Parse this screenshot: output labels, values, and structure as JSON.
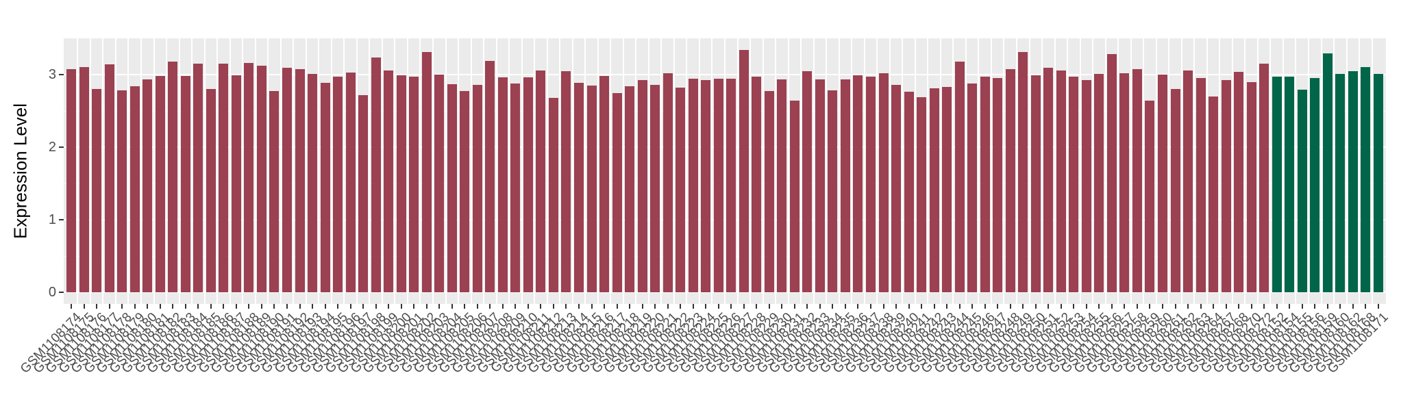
{
  "chart_data": {
    "type": "bar",
    "title": "",
    "xlabel": "",
    "ylabel": "Expression Level",
    "ylim": [
      0,
      3.5
    ],
    "yticks": [
      0,
      1,
      2,
      3
    ],
    "yticks_minor": [
      0.5,
      1.5,
      2.5
    ],
    "grid": true,
    "legend_position": "none",
    "bar_groups": [
      {
        "name": "red-group",
        "color": "#9B4151",
        "categories": [
          "GSM1108174",
          "GSM1108175",
          "GSM1108176",
          "GSM1108177",
          "GSM1108178",
          "GSM1108179",
          "GSM1108180",
          "GSM1108181",
          "GSM1108182",
          "GSM1108183",
          "GSM1108184",
          "GSM1108185",
          "GSM1108186",
          "GSM1108187",
          "GSM1108188",
          "GSM1108189",
          "GSM1108190",
          "GSM1108191",
          "GSM1108192",
          "GSM1108193",
          "GSM1108194",
          "GSM1108195",
          "GSM1108196",
          "GSM1108197",
          "GSM1108198",
          "GSM1108199",
          "GSM1108200",
          "GSM1108201",
          "GSM1108202",
          "GSM1108203",
          "GSM1108204",
          "GSM1108205",
          "GSM1108206",
          "GSM1108207",
          "GSM1108208",
          "GSM1108209",
          "GSM1108210",
          "GSM1108211",
          "GSM1108212",
          "GSM1108213",
          "GSM1108214",
          "GSM1108215",
          "GSM1108216",
          "GSM1108217",
          "GSM1108218",
          "GSM1108219",
          "GSM1108220",
          "GSM1108221",
          "GSM1108222",
          "GSM1108223",
          "GSM1108224",
          "GSM1108225",
          "GSM1108226",
          "GSM1108227",
          "GSM1108228",
          "GSM1108229",
          "GSM1108230",
          "GSM1108231",
          "GSM1108232",
          "GSM1108233",
          "GSM1108234",
          "GSM1108235",
          "GSM1108236",
          "GSM1108237",
          "GSM1108238",
          "GSM1108239",
          "GSM1108240",
          "GSM1108241",
          "GSM1108242",
          "GSM1108243",
          "GSM1108244",
          "GSM1108245",
          "GSM1108246",
          "GSM1108247",
          "GSM1108248",
          "GSM1108249",
          "GSM1108250",
          "GSM1108251",
          "GSM1108252",
          "GSM1108253",
          "GSM1108254",
          "GSM1108255",
          "GSM1108256",
          "GSM1108257",
          "GSM1108258",
          "GSM1108259",
          "GSM1108260",
          "GSM1108261",
          "GSM1108262",
          "GSM1108263",
          "GSM1108264",
          "GSM1108267",
          "GSM1108268",
          "GSM1108270",
          "GSM1108272"
        ],
        "values": [
          3.08,
          3.1,
          2.8,
          3.14,
          2.78,
          2.84,
          2.93,
          2.98,
          3.18,
          2.98,
          3.15,
          2.8,
          3.15,
          2.99,
          3.16,
          3.12,
          2.77,
          3.09,
          3.08,
          3.01,
          2.89,
          2.97,
          3.03,
          2.72,
          3.24,
          3.06,
          2.99,
          2.97,
          3.31,
          3.0,
          2.87,
          2.77,
          2.86,
          3.19,
          2.96,
          2.88,
          2.96,
          3.06,
          2.68,
          3.05,
          2.89,
          2.85,
          2.98,
          2.75,
          2.84,
          2.92,
          2.86,
          3.02,
          2.82,
          2.94,
          2.92,
          2.94,
          2.94,
          3.34,
          2.97,
          2.77,
          2.93,
          2.64,
          3.05,
          2.93,
          2.78,
          2.93,
          2.99,
          2.97,
          3.02,
          2.86,
          2.76,
          2.69,
          2.81,
          2.83,
          3.18,
          2.88,
          2.97,
          2.95,
          3.08,
          3.31,
          2.99,
          3.09,
          3.06,
          2.97,
          2.92,
          3.01,
          3.28,
          3.02,
          3.08,
          2.64,
          3.0,
          2.8,
          3.06,
          2.95,
          2.7,
          2.92,
          3.04,
          2.9,
          3.15
        ]
      },
      {
        "name": "green-group",
        "color": "#016649",
        "categories": [
          "GSM1108152",
          "GSM1108154",
          "GSM1108155",
          "GSM1108156",
          "GSM1108159",
          "GSM1108160",
          "GSM1108162",
          "GSM1108168",
          "GSM1108171"
        ],
        "values": [
          2.97,
          2.97,
          2.79,
          2.95,
          3.29,
          3.01,
          3.05,
          3.1,
          3.01
        ]
      }
    ]
  },
  "colors": {
    "panel_background": "#EBEBEB",
    "grid_line": "#FFFFFF",
    "axis_text": "#4D4D4D",
    "tick_mark": "#333333",
    "bar_red": "#9B4151",
    "bar_green": "#016649"
  }
}
